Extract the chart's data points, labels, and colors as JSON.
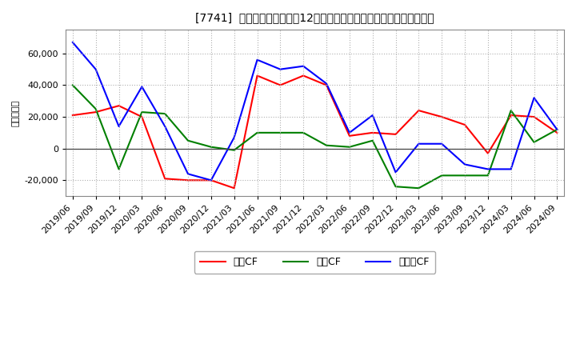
{
  "title": "[7741]  キャッシュフローの12か月移動合計の対前年同期増減額の推移",
  "ylabel": "（百万円）",
  "background_color": "#ffffff",
  "plot_bg_color": "#ffffff",
  "grid_color": "#b0b0b0",
  "dates": [
    "2019/06",
    "2019/09",
    "2019/12",
    "2020/03",
    "2020/06",
    "2020/09",
    "2020/12",
    "2021/03",
    "2021/06",
    "2021/09",
    "2021/12",
    "2022/03",
    "2022/06",
    "2022/09",
    "2022/12",
    "2023/03",
    "2023/06",
    "2023/09",
    "2023/12",
    "2024/03",
    "2024/06",
    "2024/09"
  ],
  "operating_cf": [
    21000,
    23000,
    27000,
    20000,
    -19000,
    -20000,
    -20000,
    -25000,
    46000,
    40000,
    46000,
    40000,
    8000,
    10000,
    9000,
    24000,
    20000,
    15000,
    -3000,
    21000,
    20000,
    10000
  ],
  "investing_cf": [
    40000,
    25000,
    -13000,
    23000,
    22000,
    5000,
    1000,
    -1000,
    10000,
    10000,
    10000,
    2000,
    1000,
    5000,
    -24000,
    -25000,
    -17000,
    -17000,
    -17000,
    24000,
    4000,
    12000
  ],
  "free_cf": [
    67000,
    50000,
    14000,
    39000,
    14000,
    -16000,
    -20000,
    7000,
    56000,
    50000,
    52000,
    41000,
    10000,
    21000,
    -15000,
    3000,
    3000,
    -10000,
    -13000,
    -13000,
    32000,
    12000
  ],
  "operating_color": "#ff0000",
  "investing_color": "#008000",
  "free_color": "#0000ff",
  "ylim": [
    -30000,
    75000
  ],
  "yticks": [
    -20000,
    0,
    20000,
    40000,
    60000
  ],
  "legend_labels": [
    "営業CF",
    "投資CF",
    "フリーCF"
  ]
}
